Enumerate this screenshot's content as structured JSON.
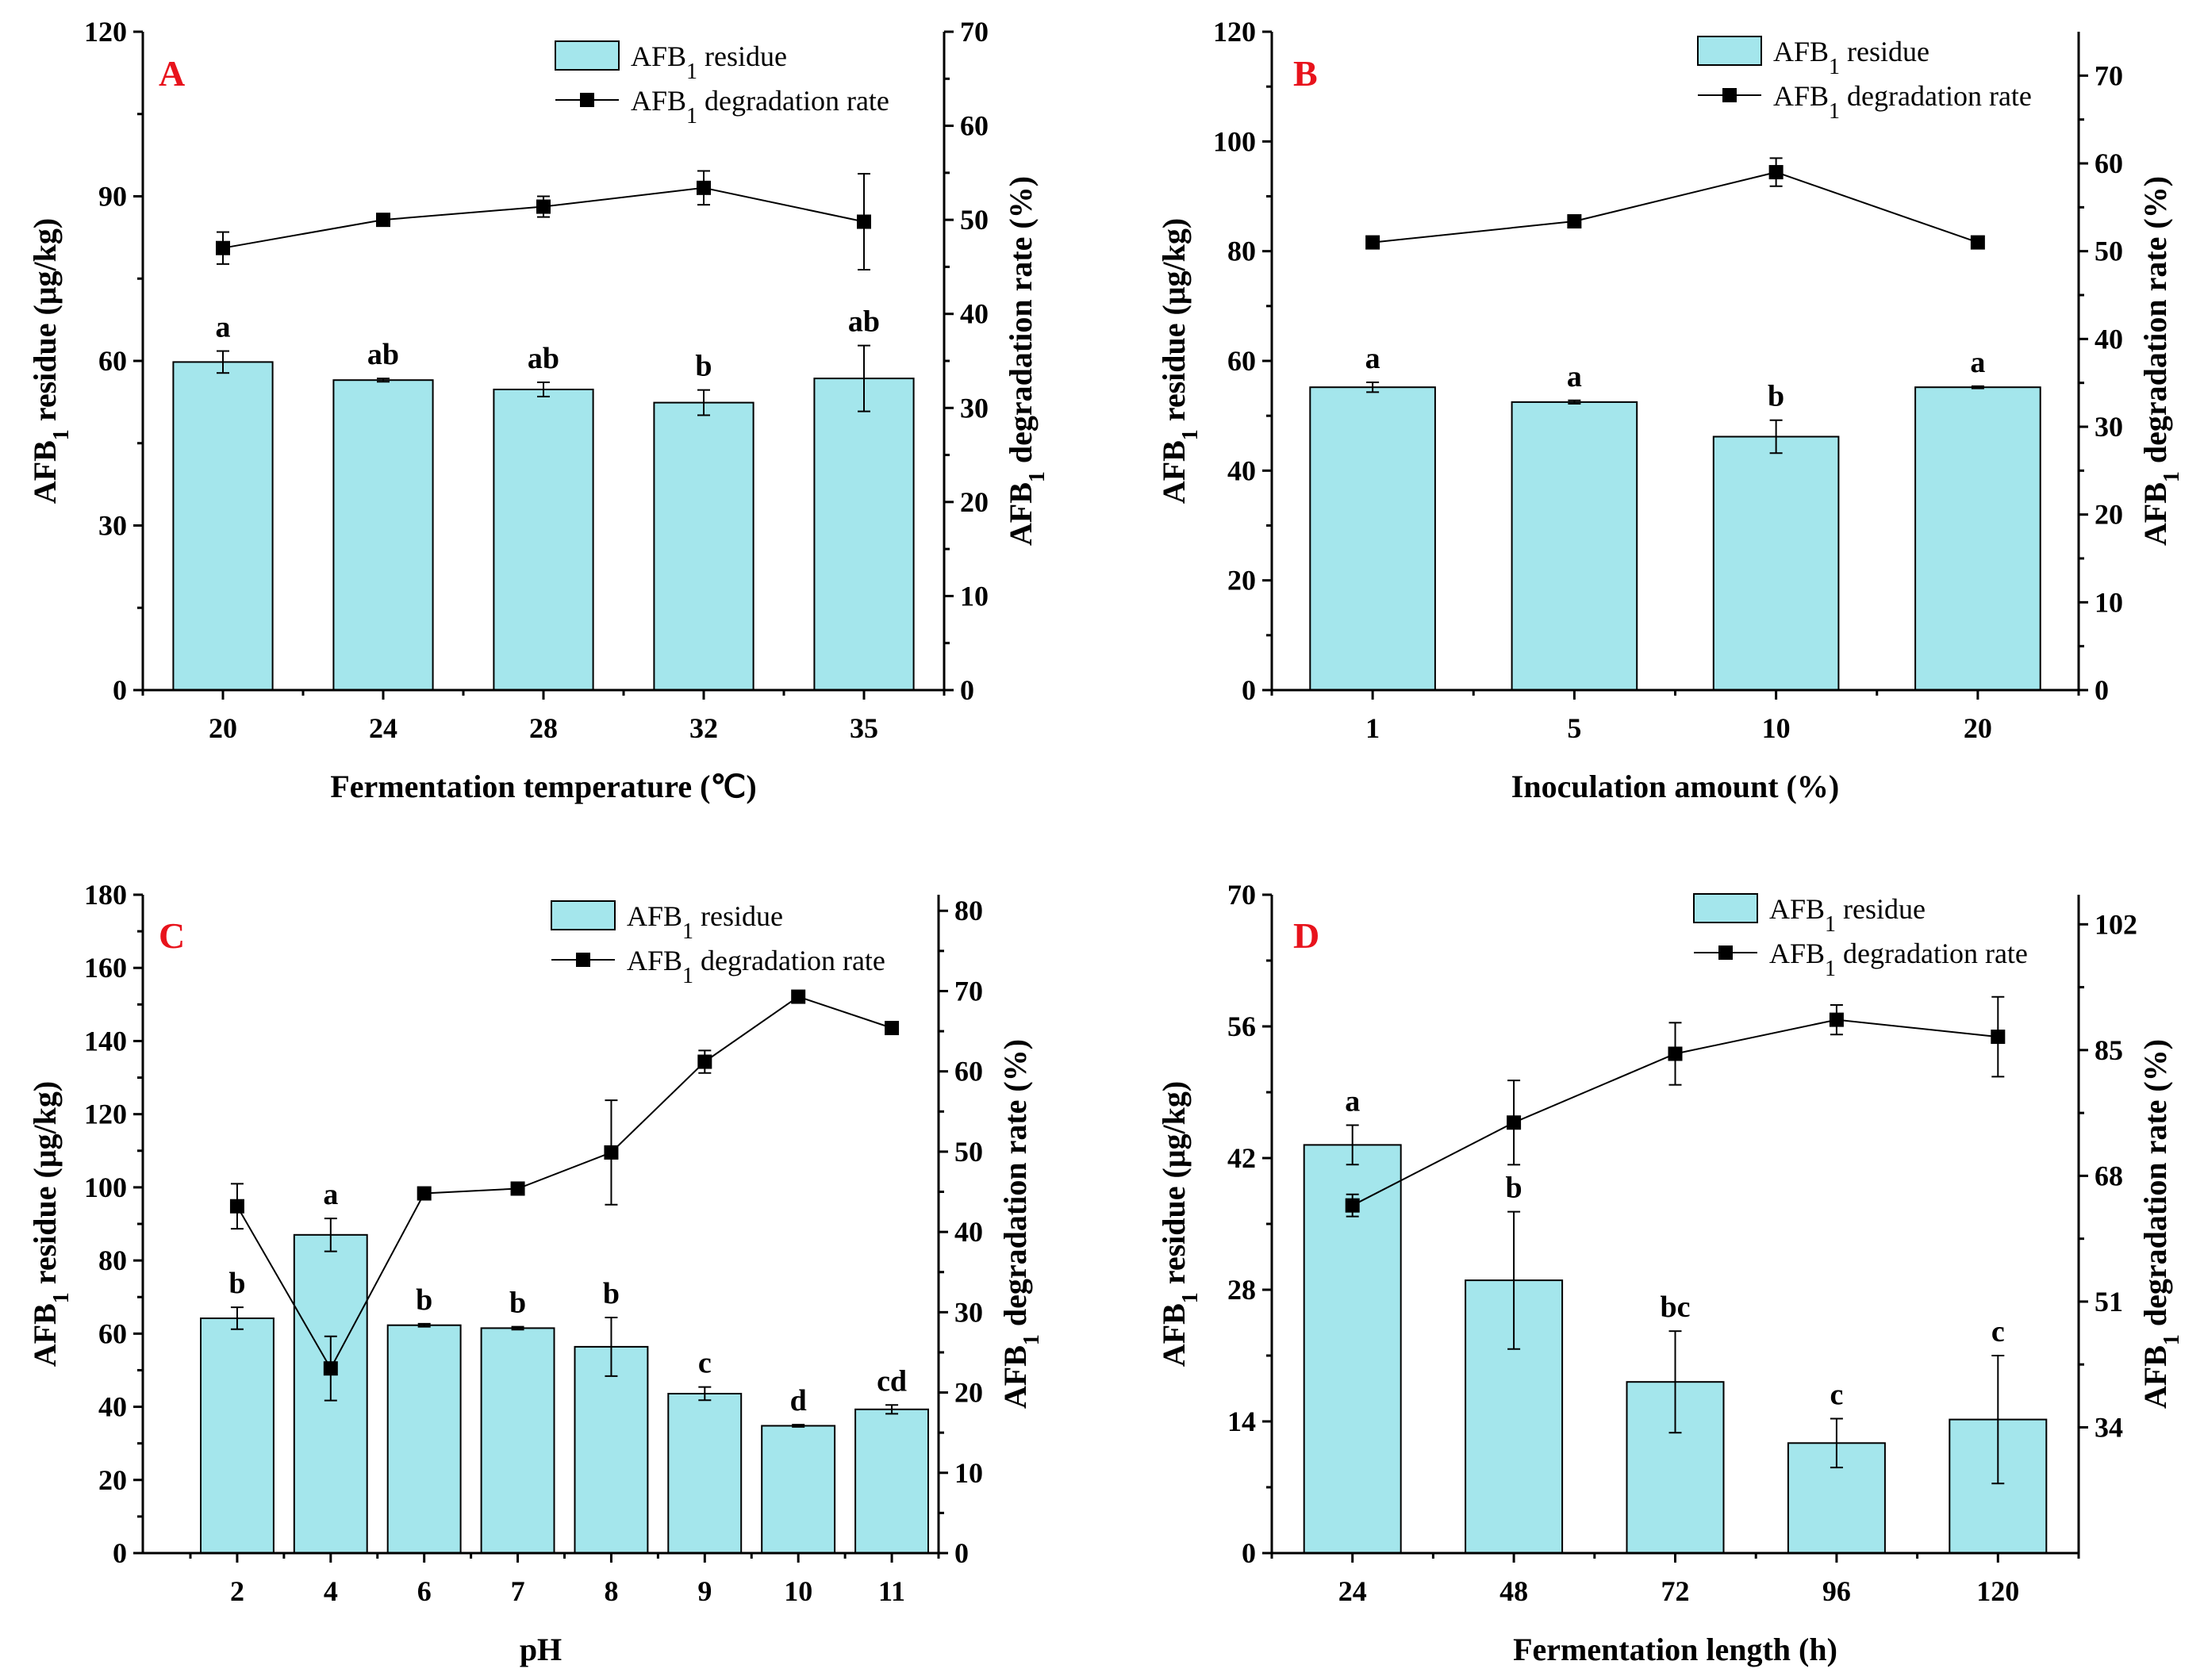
{
  "figure": {
    "colors": {
      "bar_fill": "#a4e6ec",
      "bar_stroke": "#000000",
      "line": "#000000",
      "marker": "#000000",
      "panel_label": "#e8131c",
      "axis": "#000000",
      "background": "#ffffff"
    },
    "legend": {
      "bar_label": "AFB",
      "bar_sub": "1",
      "bar_suffix": " residue",
      "line_label": "AFB",
      "line_sub": "1",
      "line_suffix": " degradation rate"
    },
    "y_left_title": {
      "pre": "AFB",
      "sub": "1",
      "post": " residue (μg/kg)"
    },
    "y_right_title": {
      "pre": "AFB",
      "sub": "1",
      "post": " degradation rate (%)"
    }
  },
  "chart_data": [
    {
      "panel": "A",
      "type": "bar",
      "xlabel": "Fermentation temperature  (℃)",
      "categories": [
        "20",
        "24",
        "28",
        "32",
        "35"
      ],
      "bar_series": {
        "name": "AFB1 residue",
        "values": [
          59.8,
          56.5,
          54.8,
          52.4,
          56.8
        ],
        "errors": [
          2.0,
          0.3,
          1.3,
          2.3,
          6.0
        ],
        "letters": [
          "a",
          "ab",
          "ab",
          "b",
          "ab"
        ]
      },
      "line_series": {
        "name": "AFB1 degradation rate",
        "values": [
          47.0,
          50.0,
          51.4,
          53.4,
          49.8
        ],
        "errors": [
          1.7,
          0.2,
          1.1,
          1.8,
          5.1
        ]
      },
      "ylim_left": [
        0,
        120
      ],
      "yticks_left": [
        0,
        30,
        60,
        90,
        120
      ],
      "ylim_right": [
        0,
        70
      ],
      "yticks_right": [
        0,
        10,
        20,
        30,
        40,
        50,
        60,
        70
      ]
    },
    {
      "panel": "B",
      "type": "bar",
      "xlabel": "Inoculation amount (%)",
      "categories": [
        "1",
        "5",
        "10",
        "20"
      ],
      "bar_series": {
        "name": "AFB1 residue",
        "values": [
          55.2,
          52.5,
          46.2,
          55.2
        ],
        "errors": [
          0.9,
          0.3,
          3.0,
          0.2
        ],
        "letters": [
          "a",
          "a",
          "b",
          "a"
        ]
      },
      "line_series": {
        "name": "AFB1 degradation rate",
        "values": [
          51.0,
          53.4,
          59.0,
          51.0
        ],
        "errors": [
          0.4,
          0.3,
          1.6,
          0.3
        ]
      },
      "ylim_left": [
        0,
        120
      ],
      "yticks_left": [
        0,
        20,
        40,
        60,
        80,
        100,
        120
      ],
      "ylim_right": [
        0,
        75
      ],
      "yticks_right": [
        0,
        10,
        20,
        30,
        40,
        50,
        60,
        70
      ]
    },
    {
      "panel": "C",
      "type": "bar",
      "xlabel": "pH",
      "categories": [
        "2",
        "4",
        "6",
        "7",
        "8",
        "9",
        "10",
        "11"
      ],
      "bar_series": {
        "name": "AFB1 residue",
        "values": [
          64.2,
          87.0,
          62.3,
          61.5,
          56.4,
          43.6,
          34.8,
          39.3
        ],
        "errors": [
          3.0,
          4.5,
          0.4,
          0.4,
          8.0,
          1.8,
          0.3,
          1.2
        ],
        "letters": [
          "b",
          "a",
          "b",
          "b",
          "b",
          "c",
          "d",
          "cd"
        ]
      },
      "line_series": {
        "name": "AFB1 degradation rate",
        "values": [
          43.2,
          23.0,
          44.8,
          45.4,
          49.9,
          61.2,
          69.3,
          65.4
        ],
        "errors": [
          2.8,
          4.0,
          0.3,
          0.3,
          6.5,
          1.4,
          0.2,
          0.5
        ]
      },
      "ylim_left": [
        0,
        180
      ],
      "yticks_left": [
        0,
        20,
        40,
        60,
        80,
        100,
        120,
        140,
        160,
        180
      ],
      "ylim_right": [
        0,
        82
      ],
      "yticks_right": [
        0,
        10,
        20,
        30,
        40,
        50,
        60,
        70,
        80
      ]
    },
    {
      "panel": "D",
      "type": "bar",
      "xlabel": "Fermentation length (h)",
      "categories": [
        "24",
        "48",
        "72",
        "96",
        "120"
      ],
      "bar_series": {
        "name": "AFB1 residue",
        "values": [
          43.4,
          29.0,
          18.2,
          11.7,
          14.2
        ],
        "errors": [
          2.1,
          7.3,
          5.4,
          2.6,
          6.8
        ],
        "letters": [
          "a",
          "b",
          "bc",
          "c",
          "c"
        ]
      },
      "line_series": {
        "name": "AFB1 degradation rate",
        "values": [
          64.0,
          75.2,
          84.5,
          89.1,
          86.8
        ],
        "errors": [
          1.5,
          5.7,
          4.2,
          2.0,
          5.4
        ]
      },
      "ylim_left": [
        0,
        70
      ],
      "yticks_left": [
        0,
        14,
        28,
        42,
        56,
        70
      ],
      "ylim_right": [
        17,
        106
      ],
      "yticks_right": [
        34,
        51,
        68,
        85,
        102
      ]
    }
  ]
}
